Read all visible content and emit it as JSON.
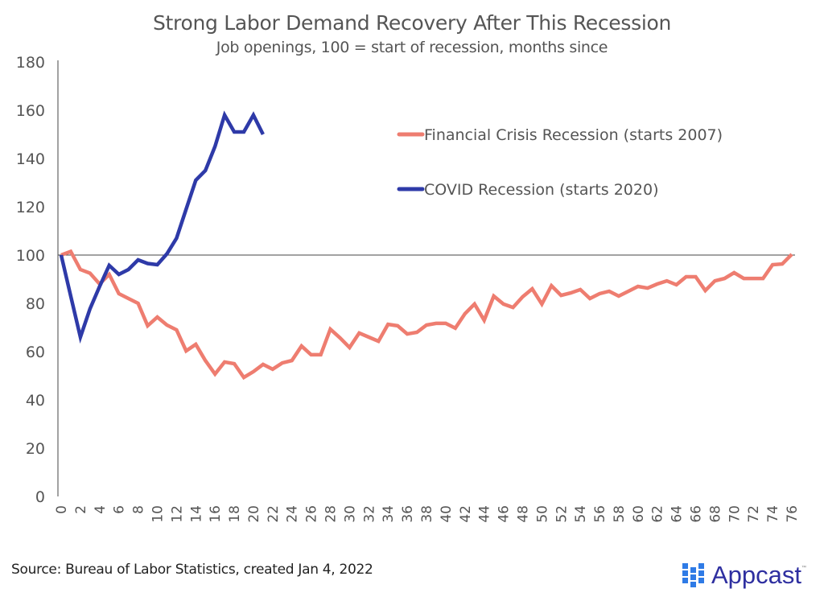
{
  "chart_data": {
    "type": "line",
    "title": "Strong Labor Demand Recovery After This Recession",
    "subtitle": "Job openings, 100 = start of recession, months since",
    "xlabel": "",
    "ylabel": "",
    "xlim": [
      0,
      76
    ],
    "ylim": [
      0,
      180
    ],
    "yticks": [
      0,
      20,
      40,
      60,
      80,
      100,
      120,
      140,
      160,
      180
    ],
    "xticks": [
      0,
      2,
      4,
      6,
      8,
      10,
      12,
      14,
      16,
      18,
      20,
      22,
      24,
      26,
      28,
      30,
      32,
      34,
      36,
      38,
      40,
      42,
      44,
      46,
      48,
      50,
      52,
      54,
      56,
      58,
      60,
      62,
      64,
      66,
      68,
      70,
      72,
      74,
      76
    ],
    "reference_line": {
      "y": 100
    },
    "grid": false,
    "legend_position": "top-right",
    "series": [
      {
        "name": "Financial Crisis Recession (starts 2007)",
        "color": "#ee7d70",
        "x": [
          0,
          1,
          2,
          3,
          4,
          5,
          6,
          7,
          8,
          9,
          10,
          11,
          12,
          13,
          14,
          15,
          16,
          17,
          18,
          19,
          20,
          21,
          22,
          23,
          24,
          25,
          26,
          27,
          28,
          29,
          30,
          31,
          32,
          33,
          34,
          35,
          36,
          37,
          38,
          39,
          40,
          41,
          42,
          43,
          44,
          45,
          46,
          47,
          48,
          49,
          50,
          51,
          52,
          53,
          54,
          55,
          56,
          57,
          58,
          59,
          60,
          61,
          62,
          63,
          64,
          65,
          66,
          67,
          68,
          69,
          70,
          71,
          72,
          73,
          74,
          75,
          76
        ],
        "values": [
          100,
          101.5,
          94,
          92.5,
          88,
          92,
          84,
          82,
          80,
          70.7,
          74.3,
          71,
          69,
          60.3,
          63,
          56.3,
          50.7,
          55.7,
          55,
          49.3,
          51.7,
          54.7,
          52.7,
          55.3,
          56.3,
          62.3,
          58.7,
          58.7,
          69.3,
          65.7,
          61.7,
          67.7,
          66,
          64.3,
          71.3,
          70.7,
          67.3,
          68,
          71,
          71.7,
          71.7,
          69.7,
          75.7,
          79.7,
          73,
          83,
          79.7,
          78.3,
          82.7,
          86,
          79.7,
          87.3,
          83.3,
          84.3,
          85.7,
          82,
          84,
          85,
          83,
          85,
          87,
          86.3,
          88,
          89.3,
          87.7,
          91,
          91,
          85.3,
          89.3,
          90.3,
          92.7,
          90.3,
          90.3,
          90.3,
          96,
          96.3,
          100.3
        ]
      },
      {
        "name": "COVID Recession (starts 2020)",
        "color": "#2e3aa8",
        "x": [
          0,
          1,
          2,
          3,
          4,
          5,
          6,
          7,
          8,
          9,
          10,
          11,
          12,
          13,
          14,
          15,
          16,
          17,
          18,
          19,
          20,
          21
        ],
        "values": [
          100,
          83,
          66,
          77.7,
          87,
          95.7,
          92,
          94,
          98,
          96.5,
          96,
          100.5,
          107,
          119,
          131,
          135,
          145,
          158,
          151,
          151,
          158,
          150
        ]
      }
    ]
  },
  "footer": {
    "source": "Source: Bureau of Labor Statistics, created Jan 4, 2022",
    "logo_text": "Appcast",
    "logo_tm": "™",
    "logo_icon": "dot-grid-logo-icon"
  }
}
